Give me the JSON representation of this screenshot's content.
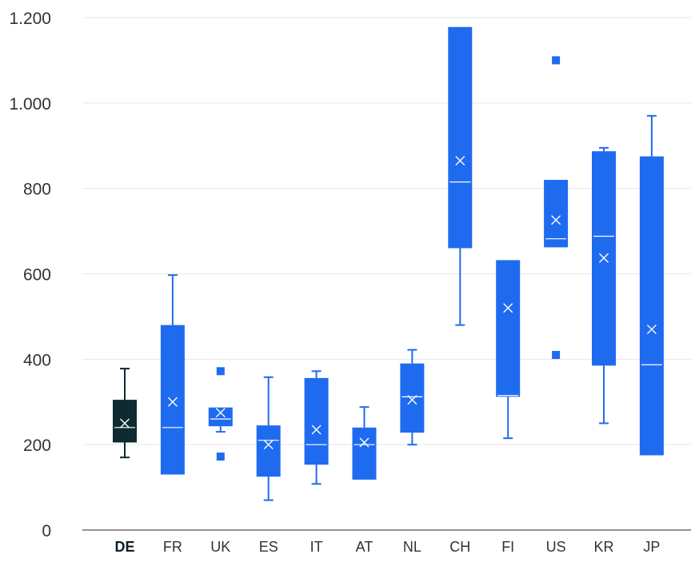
{
  "chart_data": {
    "type": "box",
    "title": "",
    "xlabel": "",
    "ylabel": "",
    "ylim": [
      0,
      1200
    ],
    "yticks": [
      0,
      200,
      400,
      600,
      800,
      1000,
      1200
    ],
    "ytick_labels": [
      "0",
      "200",
      "400",
      "600",
      "800",
      "1.000",
      "1.200"
    ],
    "grid": true,
    "legend": "none",
    "colors": {
      "default": "#1f6bf0",
      "highlight": "#0f2a30",
      "inner_marks": "#ffffff",
      "grid": "#e6e6e6",
      "axis": "#555555"
    },
    "categories": [
      {
        "label": "DE",
        "highlight": true,
        "whisker_low": 170,
        "q1": 205,
        "median": 240,
        "q3": 305,
        "whisker_high": 378,
        "mean": 250,
        "outliers": []
      },
      {
        "label": "FR",
        "highlight": false,
        "whisker_low": 130,
        "q1": 130,
        "median": 240,
        "q3": 480,
        "whisker_high": 597,
        "mean": 300,
        "outliers": []
      },
      {
        "label": "UK",
        "highlight": false,
        "whisker_low": 230,
        "q1": 243,
        "median": 260,
        "q3": 287,
        "whisker_high": 287,
        "mean": 275,
        "outliers": [
          372,
          172
        ]
      },
      {
        "label": "ES",
        "highlight": false,
        "whisker_low": 70,
        "q1": 125,
        "median": 210,
        "q3": 245,
        "whisker_high": 358,
        "mean": 200,
        "outliers": []
      },
      {
        "label": "IT",
        "highlight": false,
        "whisker_low": 108,
        "q1": 153,
        "median": 200,
        "q3": 356,
        "whisker_high": 372,
        "mean": 235,
        "outliers": []
      },
      {
        "label": "AT",
        "highlight": false,
        "whisker_low": 118,
        "q1": 118,
        "median": 200,
        "q3": 240,
        "whisker_high": 288,
        "mean": 205,
        "outliers": []
      },
      {
        "label": "NL",
        "highlight": false,
        "whisker_low": 200,
        "q1": 228,
        "median": 312,
        "q3": 390,
        "whisker_high": 422,
        "mean": 305,
        "outliers": []
      },
      {
        "label": "CH",
        "highlight": false,
        "whisker_low": 480,
        "q1": 660,
        "median": 815,
        "q3": 1178,
        "whisker_high": 1178,
        "mean": 865,
        "outliers": []
      },
      {
        "label": "FI",
        "highlight": false,
        "whisker_low": 215,
        "q1": 312,
        "median": 315,
        "q3": 632,
        "whisker_high": 632,
        "mean": 520,
        "outliers": []
      },
      {
        "label": "US",
        "highlight": false,
        "whisker_low": 662,
        "q1": 662,
        "median": 682,
        "q3": 820,
        "whisker_high": 820,
        "mean": 726,
        "outliers": [
          1100,
          410
        ]
      },
      {
        "label": "KR",
        "highlight": false,
        "whisker_low": 250,
        "q1": 385,
        "median": 688,
        "q3": 887,
        "whisker_high": 895,
        "mean": 637,
        "outliers": []
      },
      {
        "label": "JP",
        "highlight": false,
        "whisker_low": 175,
        "q1": 175,
        "median": 387,
        "q3": 875,
        "whisker_high": 970,
        "mean": 470,
        "outliers": []
      }
    ]
  }
}
